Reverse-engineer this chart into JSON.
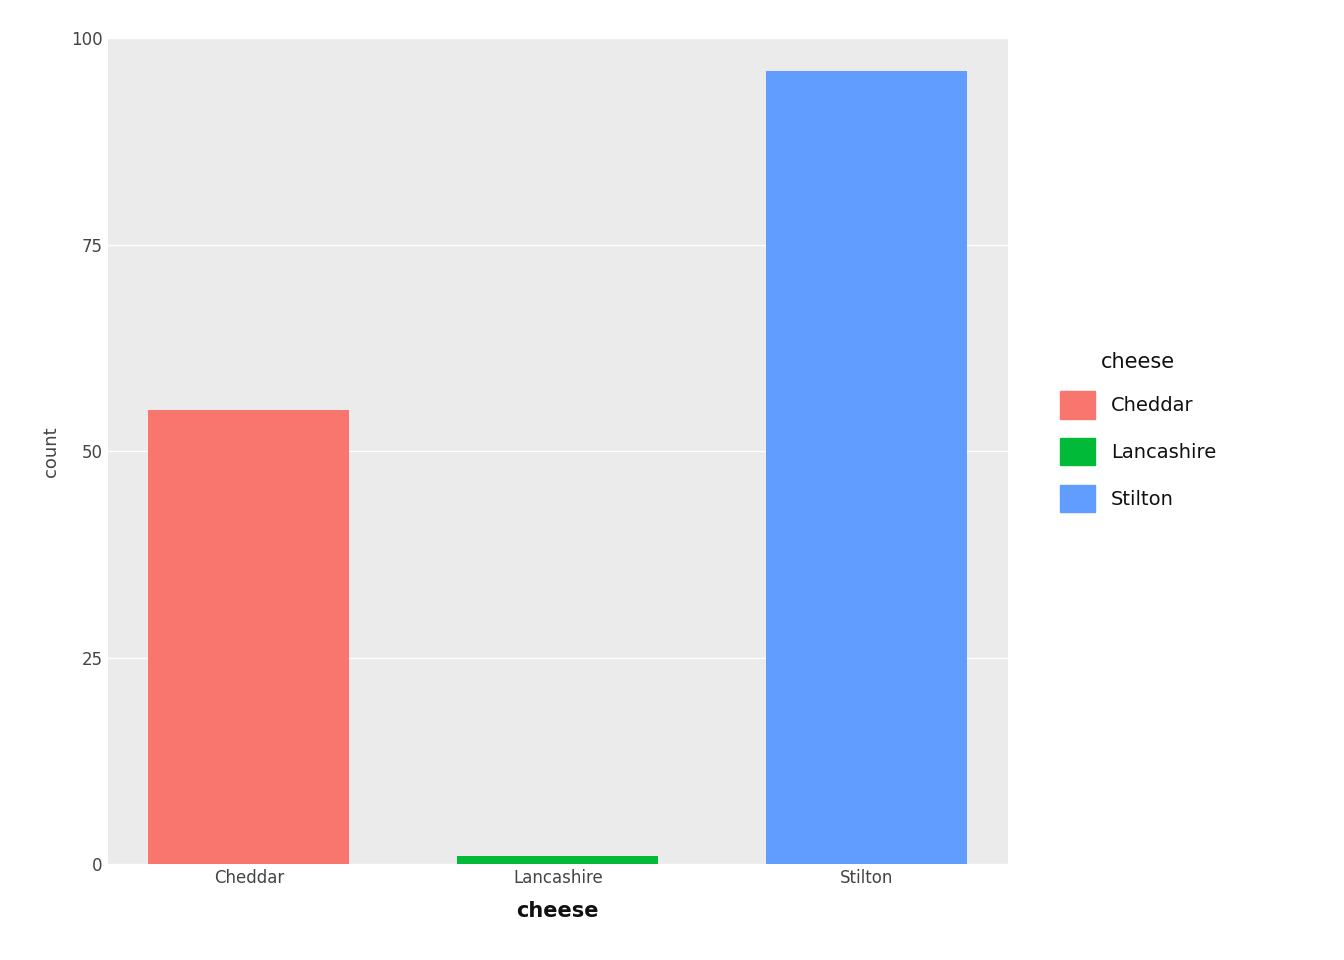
{
  "categories": [
    "Cheddar",
    "Lancashire",
    "Stilton"
  ],
  "values": [
    55,
    1,
    96
  ],
  "bar_colors": [
    "#F8766D",
    "#00BA38",
    "#619CFF"
  ],
  "xlabel": "cheese",
  "ylabel": "count",
  "legend_title": "cheese",
  "legend_labels": [
    "Cheddar",
    "Lancashire",
    "Stilton"
  ],
  "legend_colors": [
    "#F8766D",
    "#00BA38",
    "#619CFF"
  ],
  "ylim": [
    0,
    100
  ],
  "yticks": [
    0,
    25,
    50,
    75,
    100
  ],
  "background_color": "#EBEBEB",
  "grid_color": "#FFFFFF",
  "xlabel_fontsize": 15,
  "ylabel_fontsize": 13,
  "tick_fontsize": 12,
  "legend_title_fontsize": 13,
  "legend_fontsize": 12
}
